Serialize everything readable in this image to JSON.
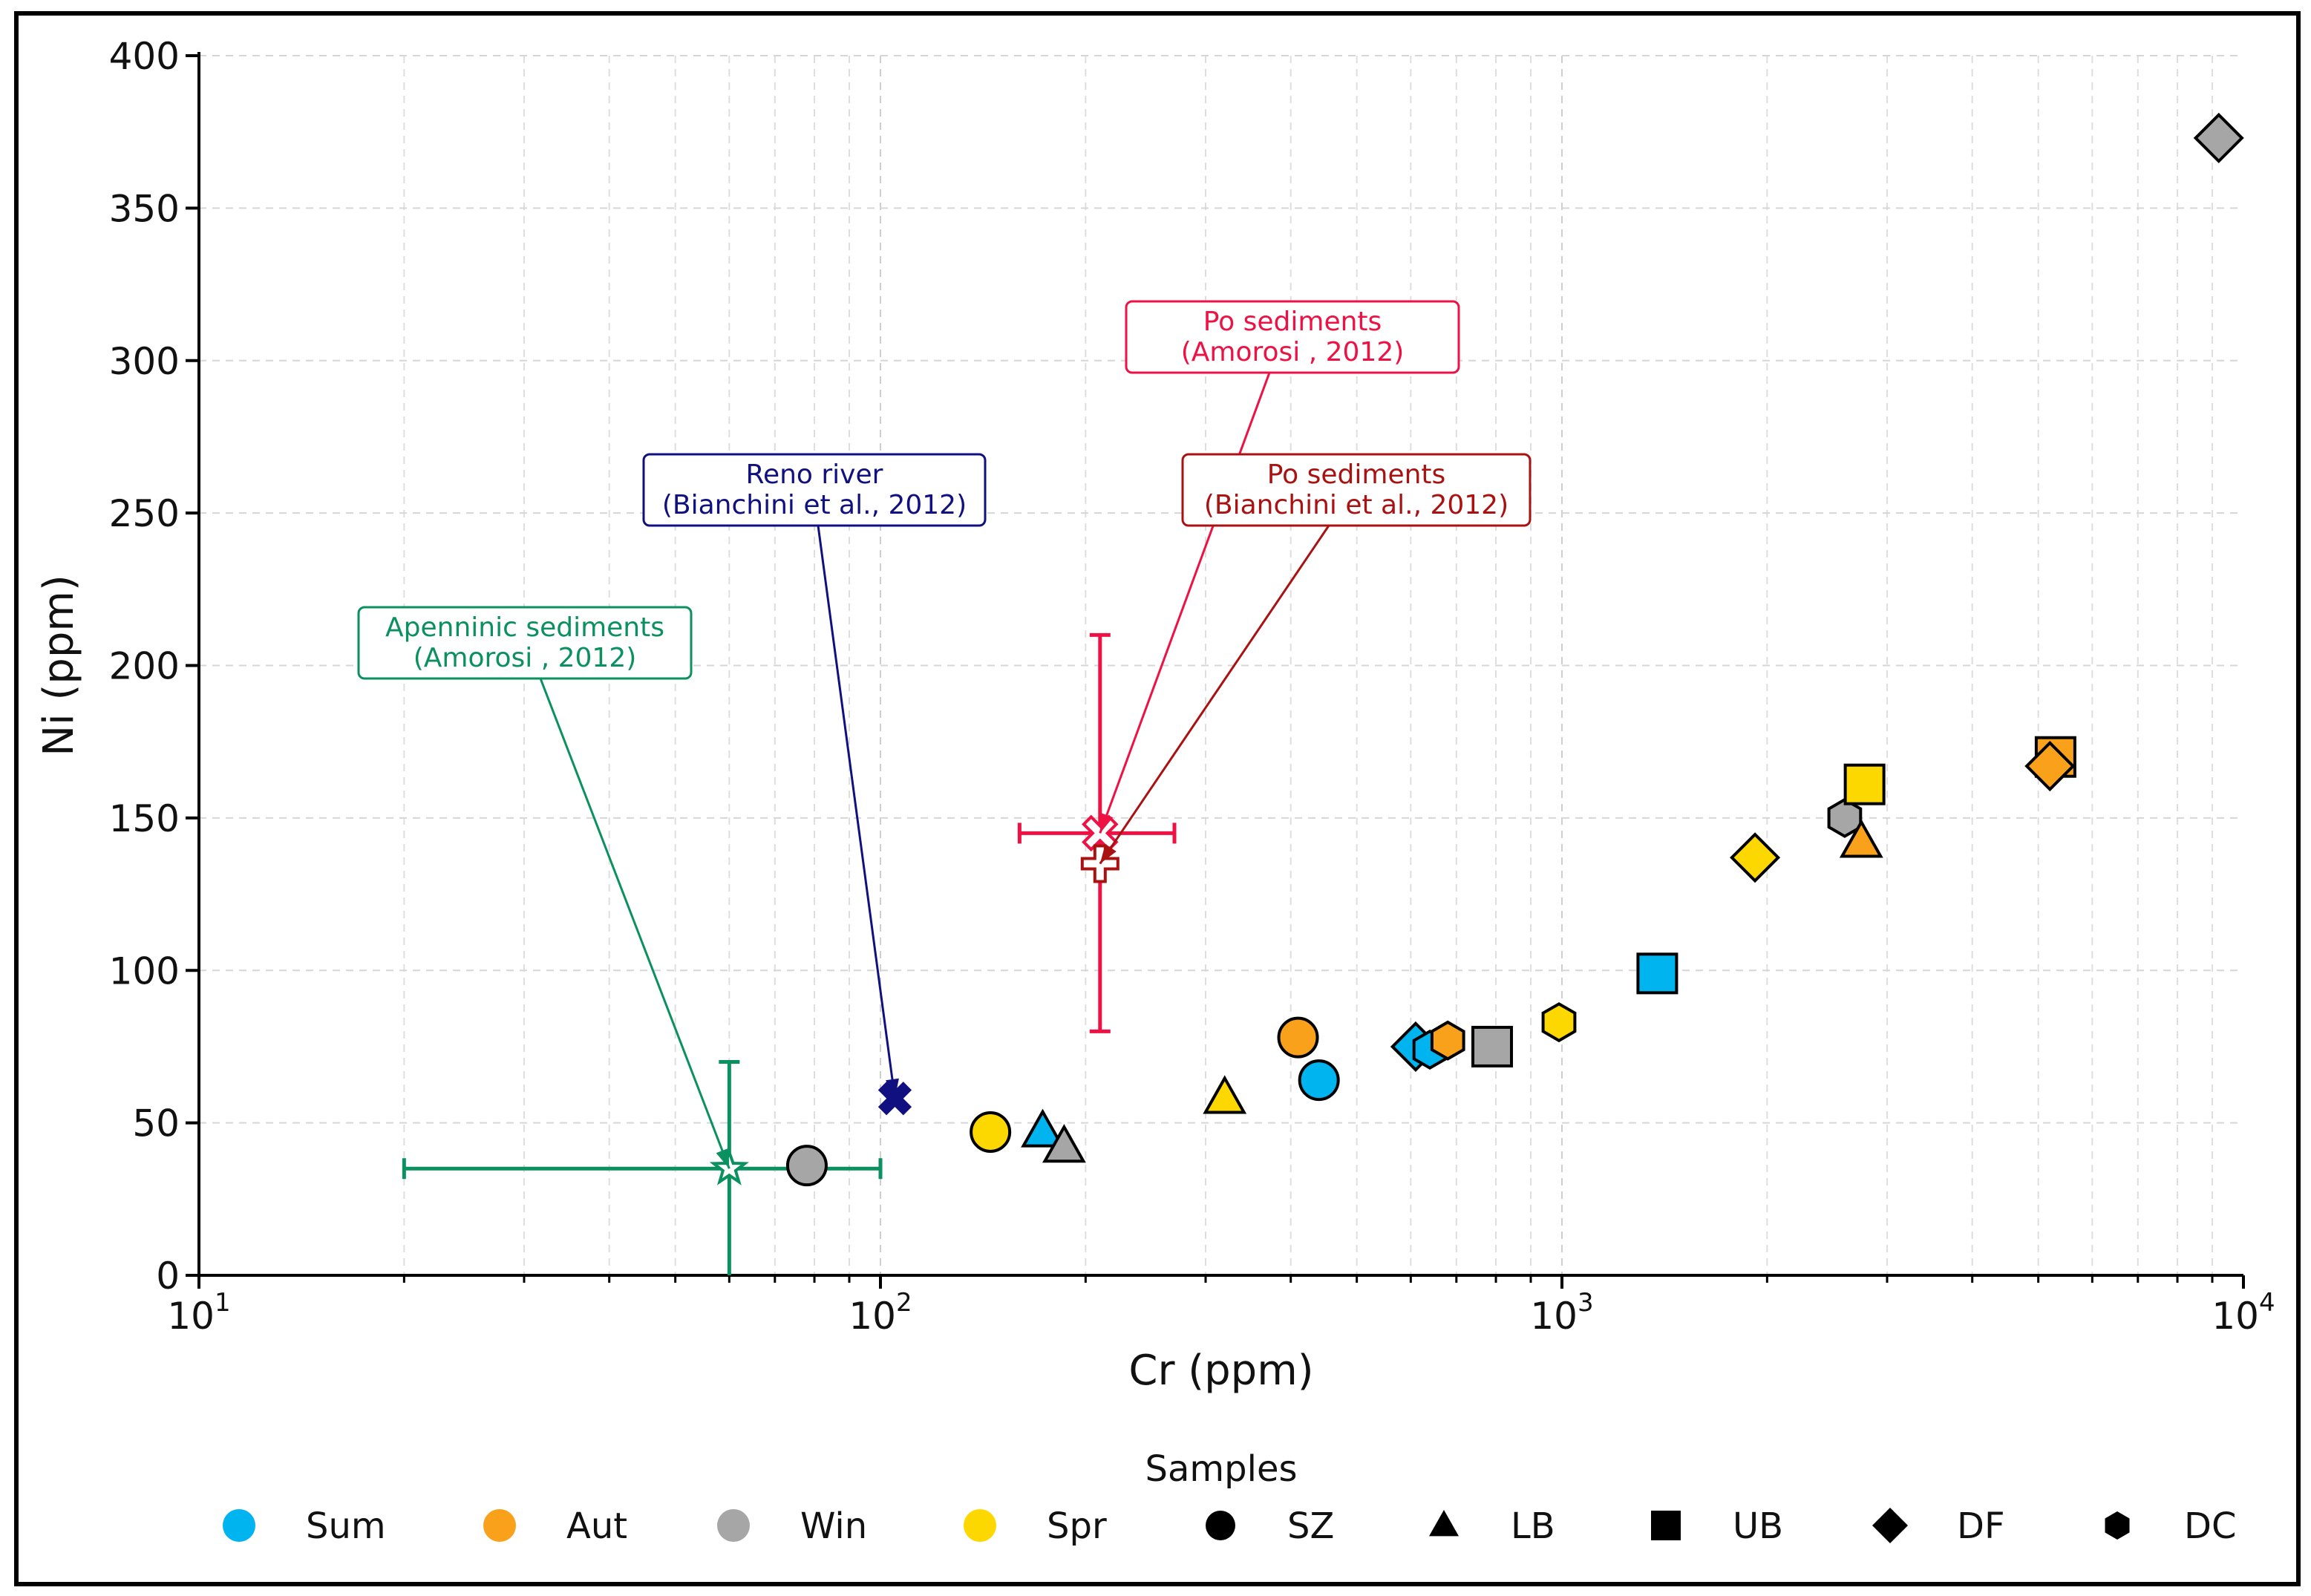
{
  "chart_data": {
    "type": "scatter",
    "title": "",
    "xlabel": "Cr (ppm)",
    "ylabel": "Ni (ppm)",
    "xscale": "log",
    "xlim": [
      10,
      10000
    ],
    "ylim": [
      0,
      400
    ],
    "grid": true,
    "x_ticks": [
      {
        "base": "10",
        "exp": "1",
        "value": 10
      },
      {
        "base": "10",
        "exp": "2",
        "value": 100
      },
      {
        "base": "10",
        "exp": "3",
        "value": 1000
      },
      {
        "base": "10",
        "exp": "4",
        "value": 10000
      }
    ],
    "y_ticks": [
      "0",
      "50",
      "100",
      "150",
      "200",
      "250",
      "300",
      "350",
      "400"
    ],
    "colors": {
      "Sum": "#00B4F0",
      "Aut": "#F9A11B",
      "Win": "#A6A6A6",
      "Spr": "#FDD800",
      "apennine": "#0B9060",
      "reno": "#101080",
      "po_amorosi": "#EE1144",
      "po_bianchini": "#AA1111"
    },
    "points": [
      {
        "season": "Win",
        "site": "SZ",
        "cr": 78,
        "ni": 36
      },
      {
        "season": "Spr",
        "site": "SZ",
        "cr": 145,
        "ni": 47
      },
      {
        "season": "Sum",
        "site": "LB",
        "cr": 173,
        "ni": 47
      },
      {
        "season": "Win",
        "site": "LB",
        "cr": 186,
        "ni": 42
      },
      {
        "season": "Spr",
        "site": "LB",
        "cr": 320,
        "ni": 58
      },
      {
        "season": "Aut",
        "site": "SZ",
        "cr": 410,
        "ni": 78
      },
      {
        "season": "Sum",
        "site": "SZ",
        "cr": 440,
        "ni": 64
      },
      {
        "season": "Sum",
        "site": "DF",
        "cr": 610,
        "ni": 75
      },
      {
        "season": "Sum",
        "site": "DC",
        "cr": 640,
        "ni": 74
      },
      {
        "season": "Aut",
        "site": "DC",
        "cr": 680,
        "ni": 77
      },
      {
        "season": "Win",
        "site": "UB",
        "cr": 790,
        "ni": 75
      },
      {
        "season": "Spr",
        "site": "DC",
        "cr": 990,
        "ni": 83
      },
      {
        "season": "Sum",
        "site": "UB",
        "cr": 1380,
        "ni": 99
      },
      {
        "season": "Spr",
        "site": "DF",
        "cr": 1920,
        "ni": 137
      },
      {
        "season": "Win",
        "site": "DC",
        "cr": 2600,
        "ni": 150
      },
      {
        "season": "Aut",
        "site": "LB",
        "cr": 2750,
        "ni": 142
      },
      {
        "season": "Spr",
        "site": "UB",
        "cr": 2780,
        "ni": 161
      },
      {
        "season": "Aut",
        "site": "UB",
        "cr": 5300,
        "ni": 170
      },
      {
        "season": "Aut",
        "site": "DF",
        "cr": 5200,
        "ni": 167
      },
      {
        "season": "Win",
        "site": "DF",
        "cr": 9200,
        "ni": 373
      }
    ],
    "references": [
      {
        "id": "apennine",
        "cr": 60,
        "ni": 35,
        "cr_range": [
          20,
          100
        ],
        "ni_range": [
          0,
          70
        ],
        "marker": "star",
        "label_line1": "Apenninic sediments",
        "label_line2": "(Amorosi , 2012)"
      },
      {
        "id": "reno",
        "cr": 105,
        "ni": 58,
        "marker": "x",
        "label_line1": "Reno river",
        "label_line2": "(Bianchini et al., 2012)"
      },
      {
        "id": "po_amorosi",
        "cr": 210,
        "ni": 145,
        "cr_range": [
          160,
          270
        ],
        "ni_range": [
          80,
          210
        ],
        "marker": "open-x",
        "label_line1": "Po sediments",
        "label_line2": "(Amorosi , 2012)"
      },
      {
        "id": "po_bianchini",
        "cr": 210,
        "ni": 135,
        "marker": "open-plus",
        "label_line1": "Po sediments",
        "label_line2": "(Bianchini et al., 2012)"
      }
    ],
    "legend": {
      "title": "Samples",
      "placement": "bottom",
      "seasons": [
        "Sum",
        "Aut",
        "Win",
        "Spr"
      ],
      "sites": [
        {
          "label": "SZ",
          "marker": "circle"
        },
        {
          "label": "LB",
          "marker": "triangle"
        },
        {
          "label": "UB",
          "marker": "square"
        },
        {
          "label": "DF",
          "marker": "diamond"
        },
        {
          "label": "DC",
          "marker": "hexagon"
        }
      ]
    }
  }
}
